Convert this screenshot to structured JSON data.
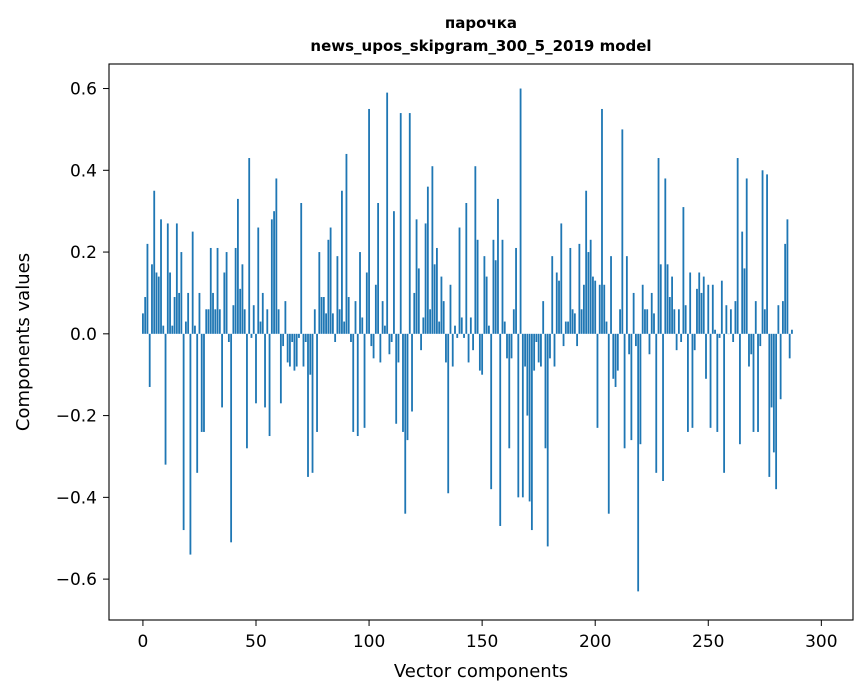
{
  "chart_data": {
    "type": "bar",
    "title_line1": "парочка",
    "title_line2": "news_upos_skipgram_300_5_2019 model",
    "xlabel": "Vector components",
    "ylabel": "Components values",
    "xlim": [
      -15,
      314
    ],
    "ylim": [
      -0.7,
      0.66
    ],
    "x_ticks": [
      0,
      50,
      100,
      150,
      200,
      250,
      300
    ],
    "x_tick_labels": [
      "0",
      "50",
      "100",
      "150",
      "200",
      "250",
      "300"
    ],
    "y_ticks": [
      -0.6,
      -0.4,
      -0.2,
      0.0,
      0.2,
      0.4,
      0.6
    ],
    "y_tick_labels": [
      "−0.6",
      "−0.4",
      "−0.2",
      "0.0",
      "0.2",
      "0.4",
      "0.6"
    ],
    "bar_color": "#1f77b4",
    "values": [
      0.05,
      0.09,
      0.22,
      -0.13,
      0.17,
      0.35,
      0.15,
      0.14,
      0.28,
      0.02,
      -0.32,
      0.27,
      0.15,
      0.02,
      0.09,
      0.27,
      0.1,
      0.2,
      -0.48,
      0.03,
      0.1,
      -0.54,
      0.25,
      0.02,
      -0.34,
      0.1,
      -0.24,
      -0.24,
      0.06,
      0.06,
      0.21,
      0.1,
      0.06,
      0.21,
      0.06,
      -0.18,
      0.15,
      0.2,
      -0.02,
      -0.51,
      0.07,
      0.21,
      0.33,
      0.11,
      0.17,
      0.06,
      -0.28,
      0.43,
      -0.01,
      0.07,
      -0.17,
      0.26,
      0.03,
      0.1,
      -0.18,
      0.06,
      -0.25,
      0.28,
      0.3,
      0.38,
      0.06,
      -0.17,
      -0.03,
      0.08,
      -0.07,
      -0.08,
      -0.02,
      -0.09,
      -0.08,
      -0.01,
      0.32,
      -0.08,
      -0.02,
      -0.35,
      -0.1,
      -0.34,
      0.06,
      -0.24,
      0.2,
      0.09,
      0.09,
      0.05,
      0.23,
      0.26,
      0.05,
      -0.02,
      0.19,
      0.06,
      0.35,
      0.03,
      0.44,
      0.09,
      -0.02,
      -0.24,
      0.08,
      -0.25,
      0.2,
      0.04,
      -0.23,
      0.15,
      0.55,
      -0.03,
      -0.06,
      0.12,
      0.32,
      -0.07,
      0.08,
      0.02,
      0.59,
      -0.05,
      -0.02,
      0.3,
      -0.22,
      -0.07,
      0.54,
      -0.24,
      -0.44,
      -0.26,
      0.54,
      -0.19,
      0.1,
      0.28,
      0.16,
      -0.04,
      0.04,
      0.27,
      0.36,
      0.06,
      0.41,
      0.17,
      0.21,
      0.03,
      0.14,
      0.08,
      -0.07,
      -0.39,
      0.12,
      -0.08,
      0.02,
      -0.01,
      0.26,
      0.04,
      -0.01,
      0.32,
      -0.07,
      0.04,
      -0.04,
      0.41,
      0.23,
      -0.09,
      -0.1,
      0.19,
      0.14,
      0.02,
      -0.38,
      0.23,
      0.18,
      0.33,
      -0.47,
      0.23,
      0.03,
      -0.06,
      -0.28,
      -0.06,
      0.06,
      0.21,
      -0.4,
      0.6,
      -0.4,
      -0.08,
      -0.2,
      -0.41,
      -0.48,
      -0.09,
      -0.02,
      -0.07,
      -0.08,
      0.08,
      -0.28,
      -0.52,
      -0.06,
      0.19,
      -0.08,
      0.15,
      0.13,
      0.27,
      -0.03,
      0.03,
      0.03,
      0.21,
      0.06,
      0.05,
      -0.03,
      0.22,
      0.06,
      0.12,
      0.35,
      0.2,
      0.23,
      0.14,
      0.13,
      -0.23,
      0.12,
      0.55,
      0.12,
      0.03,
      -0.44,
      0.19,
      -0.11,
      -0.13,
      -0.09,
      0.06,
      0.5,
      -0.28,
      0.19,
      -0.05,
      -0.26,
      0.1,
      -0.03,
      -0.63,
      -0.27,
      0.12,
      0.06,
      0.06,
      -0.05,
      0.1,
      0.05,
      -0.34,
      0.43,
      0.17,
      -0.36,
      0.38,
      0.17,
      0.09,
      0.14,
      0.06,
      -0.04,
      0.06,
      -0.02,
      0.31,
      0.07,
      -0.24,
      0.15,
      -0.23,
      -0.04,
      0.11,
      0.15,
      0.1,
      0.14,
      -0.11,
      0.12,
      -0.23,
      0.12,
      0.01,
      -0.24,
      -0.01,
      0.13,
      -0.34,
      0.07,
      0.0,
      0.06,
      -0.02,
      0.08,
      0.43,
      -0.27,
      0.25,
      0.16,
      0.38,
      -0.08,
      -0.05,
      -0.24,
      0.08,
      -0.24,
      -0.03,
      0.4,
      0.06,
      0.39,
      -0.35,
      -0.18,
      -0.29,
      -0.38,
      0.07,
      -0.16,
      0.08,
      0.22,
      0.28,
      -0.06,
      0.01
    ]
  }
}
